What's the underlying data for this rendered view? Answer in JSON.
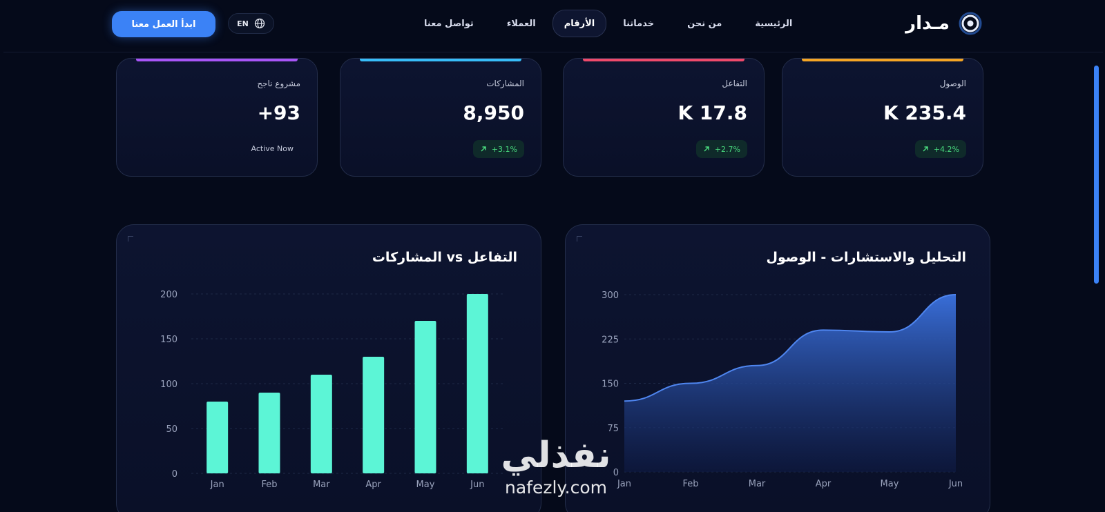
{
  "nav": {
    "brand": "مـدار",
    "links": [
      {
        "label": "الرئيسية",
        "active": false
      },
      {
        "label": "من نحن",
        "active": false
      },
      {
        "label": "خدماتنا",
        "active": false
      },
      {
        "label": "الأرقام",
        "active": true
      },
      {
        "label": "العملاء",
        "active": false
      },
      {
        "label": "تواصل معنا",
        "active": false
      }
    ],
    "lang_label": "EN",
    "cta_label": "ابدأ العمل معنا"
  },
  "stats": [
    {
      "label": "الوصول",
      "value": "K 235.4",
      "badge": "+4.2%",
      "accent": "#f5a524"
    },
    {
      "label": "التفاعل",
      "value": "K 17.8",
      "badge": "+2.7%",
      "accent": "#ef4a6b"
    },
    {
      "label": "المشاركات",
      "value": "8,950",
      "badge": "+3.1%",
      "accent": "#38bdf8"
    },
    {
      "label": "مشروع ناجح",
      "value": "+93",
      "note": "Active Now",
      "accent": "#a855f7"
    }
  ],
  "colors": {
    "accent": "#3b82f6",
    "bar": "#5cf5d6",
    "area_top": "#3b72e0",
    "area_bottom": "#0e1a44",
    "positive": "#4ade80"
  },
  "chart_data": [
    {
      "type": "area",
      "title": "التحليل والاستشارات - الوصول",
      "categories": [
        "Jan",
        "Feb",
        "Mar",
        "Apr",
        "May",
        "Jun"
      ],
      "series": [
        {
          "values": [
            120,
            150,
            180,
            240,
            237,
            300
          ]
        }
      ],
      "yticks": [
        0,
        75,
        150,
        225,
        300
      ],
      "ylim": [
        0,
        300
      ],
      "grid": true,
      "legend": "none"
    },
    {
      "type": "bar",
      "title": "التفاعل vs المشاركات",
      "categories": [
        "Jan",
        "Feb",
        "Mar",
        "Apr",
        "May",
        "Jun"
      ],
      "series": [
        {
          "values": [
            80,
            90,
            110,
            130,
            170,
            200
          ]
        }
      ],
      "yticks": [
        0,
        50,
        100,
        150,
        200
      ],
      "ylim": [
        0,
        200
      ],
      "grid": true,
      "legend": "none"
    }
  ],
  "watermark": {
    "arabic": "نفذلي",
    "latin": "nafezly.com"
  }
}
